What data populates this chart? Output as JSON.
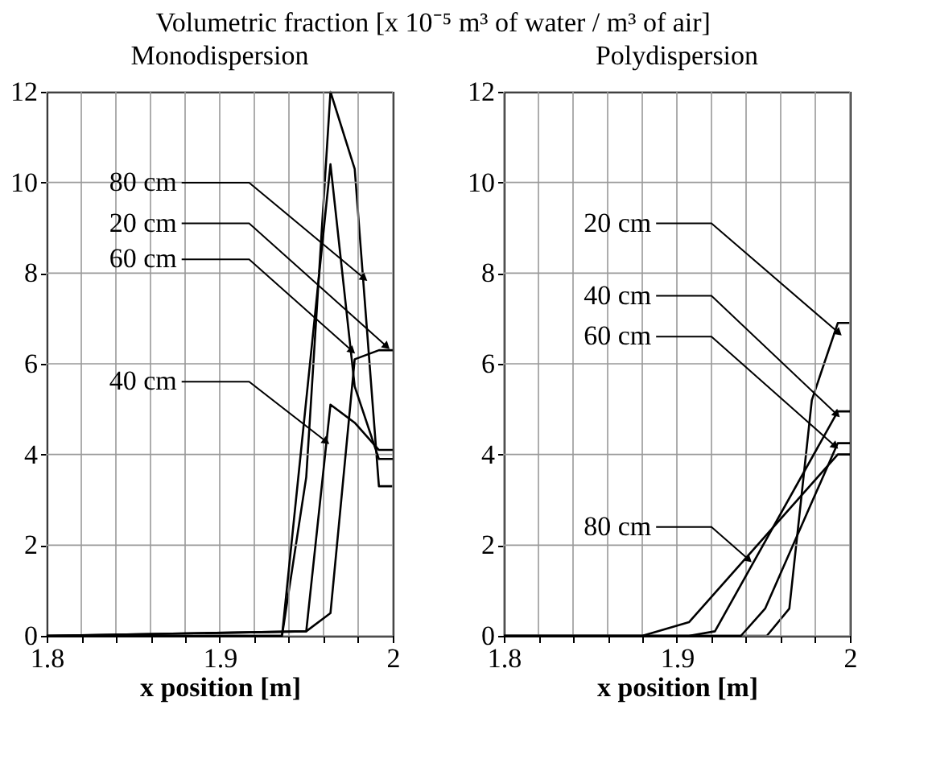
{
  "chart_data": [
    {
      "type": "line",
      "title": "Monodispersion",
      "ylabel": "Volumetric fraction [x 10⁻⁵ m³ of water / m³ of air]",
      "xlabel": "x position [m]",
      "xlim": [
        1.8,
        2.0
      ],
      "ylim": [
        0,
        12
      ],
      "xticks": [
        1.8,
        {
          "value": 1.82,
          "label": null
        },
        {
          "value": 1.84,
          "label": null
        },
        {
          "value": 1.86,
          "label": null
        },
        {
          "value": 1.88,
          "label": null
        },
        1.9,
        {
          "value": 1.92,
          "label": null
        },
        {
          "value": 1.94,
          "label": null
        },
        {
          "value": 1.96,
          "label": null
        },
        {
          "value": 1.98,
          "label": null
        },
        2
      ],
      "yticks": [
        0,
        2,
        4,
        6,
        8,
        10,
        12
      ],
      "grid": true,
      "marker": "none",
      "line_style": "solid",
      "series": [
        {
          "color": "#000000",
          "x": [
            1.8,
            1.936,
            1.95,
            1.964,
            1.978,
            1.992,
            2.0
          ],
          "values": [
            0,
            0,
            3.5,
            12,
            10.3,
            3.3,
            3.3
          ]
        },
        {
          "color": "#000000",
          "x": [
            1.8,
            1.95,
            1.964,
            1.978,
            1.992,
            2.0
          ],
          "values": [
            0,
            0.1,
            0.5,
            6.1,
            6.3,
            6.3
          ]
        },
        {
          "color": "#000000",
          "x": [
            1.8,
            1.936,
            1.964,
            1.978,
            1.992,
            2.0
          ],
          "values": [
            0,
            0,
            10.4,
            5.5,
            3.9,
            3.9
          ]
        },
        {
          "color": "#000000",
          "x": [
            1.8,
            1.95,
            1.964,
            1.978,
            1.992,
            2.0
          ],
          "values": [
            0,
            0.1,
            5.1,
            4.7,
            4.1,
            4.1
          ]
        }
      ],
      "annotations": [
        {
          "text": "80 cm",
          "x": 1.983,
          "y": 7.9
        },
        {
          "text": "20 cm",
          "x": 1.996,
          "y": 6.4
        },
        {
          "text": "60 cm",
          "x": 1.976,
          "y": 6.3
        },
        {
          "text": "40 cm",
          "x": 1.961,
          "y": 4.3
        }
      ]
    },
    {
      "type": "line",
      "title": "Polydispersion",
      "xlabel": "x position [m]",
      "xlim": [
        1.8,
        2.0
      ],
      "ylim": [
        0,
        12
      ],
      "xticks": [
        1.8,
        {
          "value": 1.82,
          "label": null
        },
        {
          "value": 1.84,
          "label": null
        },
        {
          "value": 1.86,
          "label": null
        },
        {
          "value": 1.88,
          "label": null
        },
        1.9,
        {
          "value": 1.92,
          "label": null
        },
        {
          "value": 1.94,
          "label": null
        },
        {
          "value": 1.96,
          "label": null
        },
        {
          "value": 1.98,
          "label": null
        },
        2
      ],
      "yticks": [
        0,
        2,
        4,
        6,
        8,
        10,
        12
      ],
      "grid": true,
      "marker": "none",
      "line_style": "solid",
      "series": [
        {
          "color": "#000000",
          "x": [
            1.8,
            1.952,
            1.965,
            1.978,
            1.993,
            2.0
          ],
          "values": [
            0,
            0,
            0.6,
            5.2,
            6.9,
            6.9
          ]
        },
        {
          "color": "#000000",
          "x": [
            1.8,
            1.907,
            1.922,
            1.993,
            2.0
          ],
          "values": [
            0,
            0,
            0.1,
            4.95,
            4.95
          ]
        },
        {
          "color": "#000000",
          "x": [
            1.8,
            1.937,
            1.951,
            1.993,
            2.0
          ],
          "values": [
            0,
            0,
            0.6,
            4.25,
            4.25
          ]
        },
        {
          "color": "#000000",
          "x": [
            1.8,
            1.88,
            1.907,
            1.993,
            2.0
          ],
          "values": [
            0,
            0,
            0.3,
            4.0,
            4.0
          ]
        }
      ],
      "annotations": [
        {
          "text": "20 cm",
          "x": 1.993,
          "y": 6.7
        },
        {
          "text": "40 cm",
          "x": 1.992,
          "y": 4.9
        },
        {
          "text": "60 cm",
          "x": 1.991,
          "y": 4.2
        },
        {
          "text": "80 cm",
          "x": 1.941,
          "y": 1.7
        }
      ]
    }
  ]
}
